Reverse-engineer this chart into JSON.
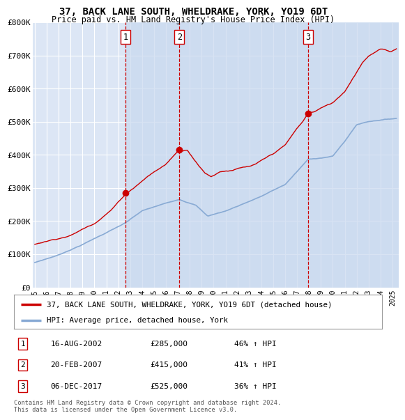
{
  "title_line1": "37, BACK LANE SOUTH, WHELDRAKE, YORK, YO19 6DT",
  "title_line2": "Price paid vs. HM Land Registry's House Price Index (HPI)",
  "plot_bg_color": "#dce6f5",
  "grid_color": "#ffffff",
  "sale_color": "#cc0000",
  "hpi_color": "#88aad4",
  "vline_color": "#cc0000",
  "band_color": "#c8d8ee",
  "sale_label": "37, BACK LANE SOUTH, WHELDRAKE, YORK, YO19 6DT (detached house)",
  "hpi_label": "HPI: Average price, detached house, York",
  "transactions": [
    {
      "num": 1,
      "date": "16-AUG-2002",
      "price": 285000,
      "pct": "46%",
      "year": 2002.62
    },
    {
      "num": 2,
      "date": "20-FEB-2007",
      "price": 415000,
      "pct": "41%",
      "year": 2007.13
    },
    {
      "num": 3,
      "date": "06-DEC-2017",
      "price": 525000,
      "pct": "36%",
      "year": 2017.92
    }
  ],
  "footnote": "Contains HM Land Registry data © Crown copyright and database right 2024.\nThis data is licensed under the Open Government Licence v3.0.",
  "ylim": [
    0,
    800000
  ],
  "yticks": [
    0,
    100000,
    200000,
    300000,
    400000,
    500000,
    600000,
    700000,
    800000
  ],
  "ytick_labels": [
    "£0",
    "£100K",
    "£200K",
    "£300K",
    "£400K",
    "£500K",
    "£600K",
    "£700K",
    "£800K"
  ],
  "xlim_start": 1994.8,
  "xlim_end": 2025.5,
  "xtick_start": 1995,
  "xtick_end": 2026
}
